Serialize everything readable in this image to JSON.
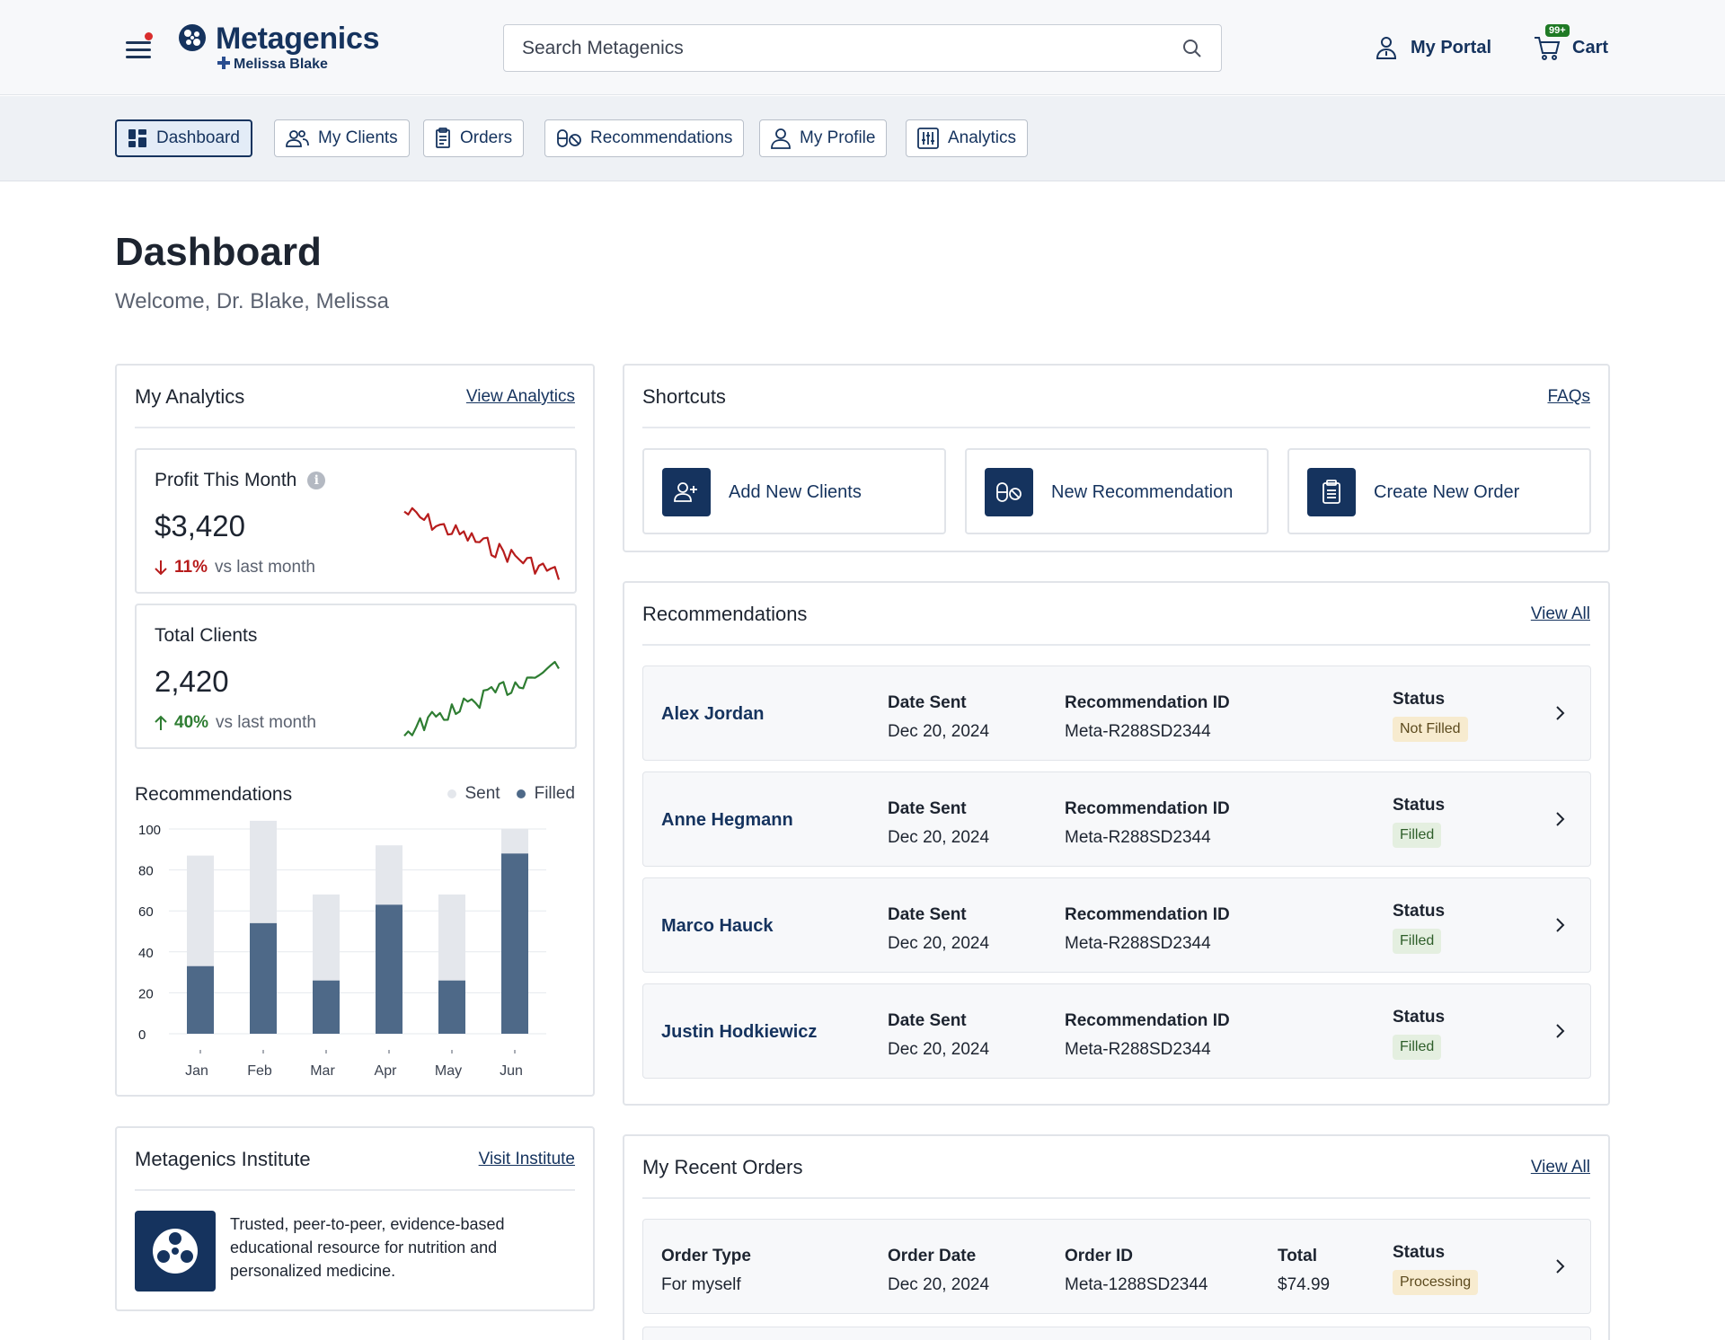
{
  "header": {
    "brand": "Metagenics",
    "account_name": "Melissa Blake",
    "search_placeholder": "Search Metagenics",
    "portal_label": "My Portal",
    "cart_label": "Cart",
    "cart_badge": "99+"
  },
  "nav": {
    "tabs": [
      {
        "label": "Dashboard",
        "icon": "dashboard-icon",
        "active": true
      },
      {
        "label": "My Clients",
        "icon": "users-icon"
      },
      {
        "label": "Orders",
        "icon": "clipboard-icon"
      },
      {
        "label": "Recommendations",
        "icon": "pills-icon"
      },
      {
        "label": "My Profile",
        "icon": "person-icon"
      },
      {
        "label": "Analytics",
        "icon": "sliders-icon"
      }
    ]
  },
  "page": {
    "title": "Dashboard",
    "welcome": "Welcome, Dr. Blake, Melissa"
  },
  "analytics": {
    "title": "My Analytics",
    "link": "View Analytics",
    "profit": {
      "label": "Profit This Month",
      "value": "$3,420",
      "delta": "11%",
      "delta_text": "vs last month",
      "trend": "down",
      "color": "#b71c1c"
    },
    "clients": {
      "label": "Total Clients",
      "value": "2,420",
      "delta": "40%",
      "delta_text": "vs last month",
      "trend": "up",
      "color": "#2e7d32"
    },
    "chart_title": "Recommendations",
    "legend_sent": "Sent",
    "legend_filled": "Filled"
  },
  "chart_data": {
    "type": "bar",
    "title": "Recommendations",
    "categories": [
      "Jan",
      "Feb",
      "Mar",
      "Apr",
      "May",
      "Jun"
    ],
    "series": [
      {
        "name": "Sent",
        "values": [
          87,
          104,
          68,
          92,
          68,
          100
        ],
        "color": "#e4e7ec"
      },
      {
        "name": "Filled",
        "values": [
          33,
          54,
          26,
          63,
          26,
          88
        ],
        "color": "#4e6988"
      }
    ],
    "yticks": [
      0,
      20,
      40,
      60,
      80,
      100
    ],
    "ylim": [
      0,
      100
    ],
    "legend": "top-right",
    "grid": true
  },
  "shortcuts": {
    "title": "Shortcuts",
    "link": "FAQs",
    "items": [
      {
        "label": "Add New Clients",
        "icon": "add-user-icon"
      },
      {
        "label": "New Recommendation",
        "icon": "pills-icon"
      },
      {
        "label": "Create New Order",
        "icon": "clipboard-icon"
      }
    ]
  },
  "recommendations": {
    "title": "Recommendations",
    "link": "View All",
    "date_header": "Date Sent",
    "id_header": "Recommendation ID",
    "status_header": "Status",
    "rows": [
      {
        "name": "Alex Jordan",
        "date": "Dec 20, 2024",
        "id": "Meta-R288SD2344",
        "status": "Not Filled"
      },
      {
        "name": "Anne Hegmann",
        "date": "Dec 20, 2024",
        "id": "Meta-R288SD2344",
        "status": "Filled"
      },
      {
        "name": "Marco Hauck",
        "date": "Dec 20, 2024",
        "id": "Meta-R288SD2344",
        "status": "Filled"
      },
      {
        "name": "Justin Hodkiewicz",
        "date": "Dec 20, 2024",
        "id": "Meta-R288SD2344",
        "status": "Filled"
      }
    ]
  },
  "institute": {
    "title": "Metagenics Institute",
    "link": "Visit Institute",
    "text": "Trusted, peer-to-peer, evidence-based educational resource for nutrition and personalized medicine."
  },
  "orders": {
    "title": "My Recent Orders",
    "link": "View All",
    "headers": {
      "type": "Order Type",
      "date": "Order Date",
      "id": "Order ID",
      "total": "Total",
      "status": "Status"
    },
    "rows": [
      {
        "type": "For myself",
        "date": "Dec 20, 2024",
        "id": "Meta-1288SD2344",
        "total": "$74.99",
        "status": "Processing"
      }
    ]
  }
}
